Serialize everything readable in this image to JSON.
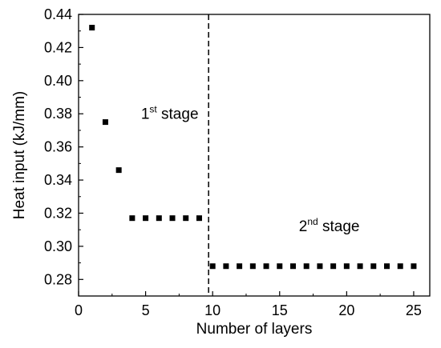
{
  "chart_data": {
    "type": "scatter",
    "title": "",
    "xlabel": "Number of layers",
    "ylabel": "Heat input (kJ/mm)",
    "xlim": [
      0,
      26.2
    ],
    "ylim": [
      0.27,
      0.44
    ],
    "x_ticks": [
      0,
      5,
      10,
      15,
      20,
      25
    ],
    "y_ticks": [
      0.28,
      0.3,
      0.32,
      0.34,
      0.36,
      0.38,
      0.4,
      0.42,
      0.44
    ],
    "grid": false,
    "legend": "none",
    "marker": "square",
    "marker_color": "#000000",
    "divider_x": 9.7,
    "series": [
      {
        "x": [
          1,
          2,
          3,
          4,
          5,
          6,
          7,
          8,
          9,
          10,
          11,
          12,
          13,
          14,
          15,
          16,
          17,
          18,
          19,
          20,
          21,
          22,
          23,
          24,
          25
        ],
        "y": [
          0.432,
          0.375,
          0.346,
          0.317,
          0.317,
          0.317,
          0.317,
          0.317,
          0.317,
          0.288,
          0.288,
          0.288,
          0.288,
          0.288,
          0.288,
          0.288,
          0.288,
          0.288,
          0.288,
          0.288,
          0.288,
          0.288,
          0.288,
          0.288,
          0.288
        ]
      }
    ],
    "annotations": [
      {
        "base": "1",
        "sup": "st",
        "text": " stage",
        "x": 6.8,
        "y": 0.377
      },
      {
        "base": "2",
        "sup": "nd",
        "text": " stage",
        "x": 18.7,
        "y": 0.309
      }
    ]
  }
}
